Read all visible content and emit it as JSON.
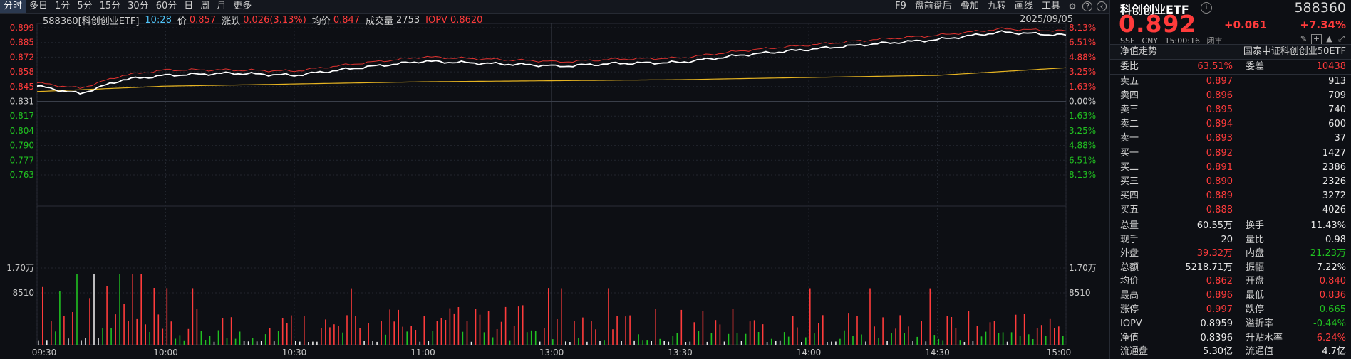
{
  "toolbar": {
    "left_items": [
      "分时",
      "多日",
      "1分",
      "5分",
      "15分",
      "30分",
      "60分",
      "日",
      "周",
      "月",
      "更多"
    ],
    "active_index": 0,
    "right_items": [
      "F9",
      "盘前盘后",
      "叠加",
      "九转",
      "画线",
      "工具"
    ],
    "right_icons": [
      "settings-icon",
      "help-icon",
      "collapse-icon"
    ]
  },
  "info": {
    "name": "588360[科创创业ETF]",
    "time": "10:28",
    "price_label": "价",
    "price": "0.857",
    "change_label": "涨跌",
    "change": "0.026(3.13%)",
    "avg_label": "均价",
    "avg": "0.847",
    "volume_label": "成交量",
    "volume": "2753",
    "iopv_label": "IOPV",
    "iopv": "0.8620",
    "date": "2025/09/05"
  },
  "colors": {
    "up": "#ff3b3b",
    "down": "#21c221",
    "price_line": "#ffffff",
    "iopv_line": "#e0322f",
    "avg_line": "#e6b422",
    "background": "#0d0f14"
  },
  "chart_data": {
    "type": "line",
    "y_price_ticks": [
      "0.899",
      "0.885",
      "0.872",
      "0.858",
      "0.845",
      "0.831",
      "0.817",
      "0.804",
      "0.790",
      "0.777",
      "0.763"
    ],
    "y_pct_ticks": [
      "8.13%",
      "6.51%",
      "4.88%",
      "3.25%",
      "1.63%",
      "0.00%",
      "1.63%",
      "3.25%",
      "4.88%",
      "6.51%",
      "8.13%"
    ],
    "prev_close": 0.831,
    "ylim": [
      0.763,
      0.899
    ],
    "volume_ticks": [
      "1.70万",
      "8510"
    ],
    "x_ticks": [
      "09:30",
      "10:00",
      "10:30",
      "11:00",
      "13:00",
      "13:30",
      "14:00",
      "14:30",
      "15:00"
    ],
    "series": [
      {
        "name": "价",
        "x": [
          "09:30",
          "09:40",
          "09:50",
          "10:00",
          "10:15",
          "10:30",
          "10:45",
          "11:00",
          "11:30",
          "13:00",
          "13:15",
          "13:30",
          "13:45",
          "14:00",
          "14:15",
          "14:30",
          "14:45",
          "15:00"
        ],
        "values": [
          0.845,
          0.838,
          0.851,
          0.855,
          0.857,
          0.855,
          0.862,
          0.868,
          0.864,
          0.863,
          0.866,
          0.867,
          0.874,
          0.879,
          0.884,
          0.888,
          0.895,
          0.892
        ]
      },
      {
        "name": "IOPV",
        "x": [
          "09:30",
          "09:40",
          "09:50",
          "10:00",
          "10:15",
          "10:30",
          "10:45",
          "11:00",
          "11:30",
          "13:00",
          "13:15",
          "13:30",
          "13:45",
          "14:00",
          "14:15",
          "14:30",
          "14:45",
          "15:00"
        ],
        "values": [
          0.848,
          0.843,
          0.855,
          0.86,
          0.86,
          0.859,
          0.866,
          0.872,
          0.868,
          0.867,
          0.87,
          0.871,
          0.878,
          0.883,
          0.888,
          0.892,
          0.898,
          0.896
        ]
      },
      {
        "name": "均价",
        "x": [
          "09:30",
          "10:00",
          "10:30",
          "11:00",
          "11:30",
          "13:00",
          "13:30",
          "14:00",
          "14:30",
          "15:00"
        ],
        "values": [
          0.84,
          0.845,
          0.847,
          0.849,
          0.85,
          0.85,
          0.851,
          0.853,
          0.855,
          0.862
        ]
      }
    ]
  },
  "panel": {
    "name": "科创创业ETF",
    "info_icon": "i",
    "code": "588360",
    "price": "0.892",
    "change": "+0.061",
    "pct": "+7.34%",
    "sub": [
      "SSE",
      "CNY",
      "15:00:16",
      "闭市"
    ],
    "section_title": "净值走势",
    "section_right": "国泰中证科创创业50ETF",
    "weibi_label": "委比",
    "weibi": "63.51%",
    "weicha_label": "委差",
    "weicha": "10438",
    "asks": [
      {
        "label": "卖五",
        "price": "0.897",
        "vol": "913"
      },
      {
        "label": "卖四",
        "price": "0.896",
        "vol": "709"
      },
      {
        "label": "卖三",
        "price": "0.895",
        "vol": "740"
      },
      {
        "label": "卖二",
        "price": "0.894",
        "vol": "600"
      },
      {
        "label": "卖一",
        "price": "0.893",
        "vol": "37"
      }
    ],
    "bids": [
      {
        "label": "买一",
        "price": "0.892",
        "vol": "1427"
      },
      {
        "label": "买二",
        "price": "0.891",
        "vol": "2386"
      },
      {
        "label": "买三",
        "price": "0.890",
        "vol": "2326"
      },
      {
        "label": "买四",
        "price": "0.889",
        "vol": "3272"
      },
      {
        "label": "买五",
        "price": "0.888",
        "vol": "4026"
      }
    ],
    "stats": [
      {
        "l1": "总量",
        "v1": "60.55万",
        "c1": "white",
        "l2": "换手",
        "v2": "11.43%",
        "c2": "white"
      },
      {
        "l1": "现手",
        "v1": "20",
        "c1": "white",
        "l2": "量比",
        "v2": "0.98",
        "c2": "white"
      },
      {
        "l1": "外盘",
        "v1": "39.32万",
        "c1": "red",
        "l2": "内盘",
        "v2": "21.23万",
        "c2": "green"
      },
      {
        "l1": "总额",
        "v1": "5218.71万",
        "c1": "white",
        "l2": "振幅",
        "v2": "7.22%",
        "c2": "white"
      },
      {
        "l1": "均价",
        "v1": "0.862",
        "c1": "red",
        "l2": "开盘",
        "v2": "0.840",
        "c2": "red"
      },
      {
        "l1": "最高",
        "v1": "0.896",
        "c1": "red",
        "l2": "最低",
        "v2": "0.836",
        "c2": "red"
      },
      {
        "l1": "涨停",
        "v1": "0.997",
        "c1": "red",
        "l2": "跌停",
        "v2": "0.665",
        "c2": "green"
      }
    ],
    "stats2": [
      {
        "l1": "IOPV",
        "v1": "0.8959",
        "c1": "white",
        "l2": "溢折率",
        "v2": "-0.44%",
        "c2": "green"
      },
      {
        "l1": "净值",
        "v1": "0.8396",
        "c1": "white",
        "l2": "升贴水率",
        "v2": "6.24%",
        "c2": "red"
      },
      {
        "l1": "流通盘",
        "v1": "5.30亿",
        "c1": "white",
        "l2": "流通值",
        "v2": "4.7亿",
        "c2": "white"
      }
    ]
  }
}
